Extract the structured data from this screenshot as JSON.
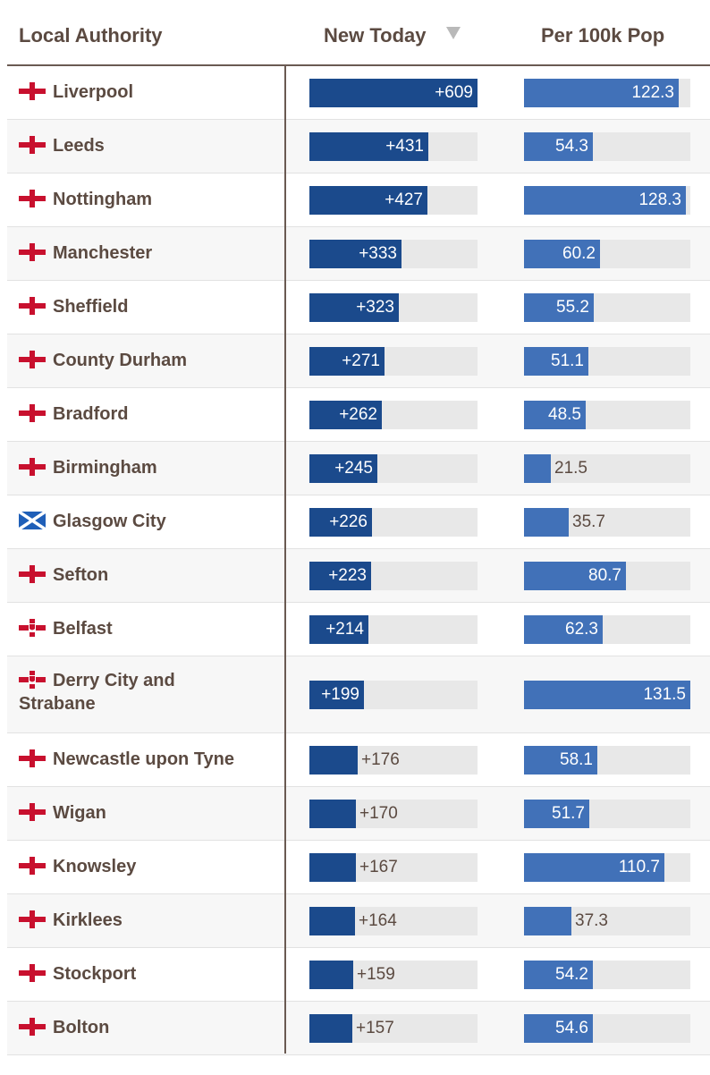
{
  "headers": {
    "authority": "Local Authority",
    "new_today": "New Today",
    "per_100k": "Per 100k Pop"
  },
  "colors": {
    "new_bar": "#1b4a8c",
    "per_bar": "#4171b8",
    "track": "#e8e8e8",
    "england_red": "#c8102e",
    "scotland_blue": "#1f5fb8"
  },
  "chart_data": {
    "type": "table",
    "sort": "new_today-descending",
    "new_today_max": 609,
    "per_100k_max": 131.5,
    "rows": [
      {
        "name": "Liverpool",
        "flag": "england-flag-icon",
        "new": 609,
        "new_label": "+609",
        "per": 122.3,
        "per_label": "122.3"
      },
      {
        "name": "Leeds",
        "flag": "england-flag-icon",
        "new": 431,
        "new_label": "+431",
        "per": 54.3,
        "per_label": "54.3"
      },
      {
        "name": "Nottingham",
        "flag": "england-flag-icon",
        "new": 427,
        "new_label": "+427",
        "per": 128.3,
        "per_label": "128.3"
      },
      {
        "name": "Manchester",
        "flag": "england-flag-icon",
        "new": 333,
        "new_label": "+333",
        "per": 60.2,
        "per_label": "60.2"
      },
      {
        "name": "Sheffield",
        "flag": "england-flag-icon",
        "new": 323,
        "new_label": "+323",
        "per": 55.2,
        "per_label": "55.2"
      },
      {
        "name": "County Durham",
        "flag": "england-flag-icon",
        "new": 271,
        "new_label": "+271",
        "per": 51.1,
        "per_label": "51.1"
      },
      {
        "name": "Bradford",
        "flag": "england-flag-icon",
        "new": 262,
        "new_label": "+262",
        "per": 48.5,
        "per_label": "48.5"
      },
      {
        "name": "Birmingham",
        "flag": "england-flag-icon",
        "new": 245,
        "new_label": "+245",
        "per": 21.5,
        "per_label": "21.5"
      },
      {
        "name": "Glasgow City",
        "flag": "scotland-flag-icon",
        "new": 226,
        "new_label": "+226",
        "per": 35.7,
        "per_label": "35.7"
      },
      {
        "name": "Sefton",
        "flag": "england-flag-icon",
        "new": 223,
        "new_label": "+223",
        "per": 80.7,
        "per_label": "80.7"
      },
      {
        "name": "Belfast",
        "flag": "northern-ireland-flag-icon",
        "new": 214,
        "new_label": "+214",
        "per": 62.3,
        "per_label": "62.3"
      },
      {
        "name": "Derry City and Strabane",
        "flag": "northern-ireland-flag-icon",
        "new": 199,
        "new_label": "+199",
        "per": 131.5,
        "per_label": "131.5"
      },
      {
        "name": "Newcastle upon Tyne",
        "flag": "england-flag-icon",
        "new": 176,
        "new_label": "+176",
        "per": 58.1,
        "per_label": "58.1"
      },
      {
        "name": "Wigan",
        "flag": "england-flag-icon",
        "new": 170,
        "new_label": "+170",
        "per": 51.7,
        "per_label": "51.7"
      },
      {
        "name": "Knowsley",
        "flag": "england-flag-icon",
        "new": 167,
        "new_label": "+167",
        "per": 110.7,
        "per_label": "110.7"
      },
      {
        "name": "Kirklees",
        "flag": "england-flag-icon",
        "new": 164,
        "new_label": "+164",
        "per": 37.3,
        "per_label": "37.3"
      },
      {
        "name": "Stockport",
        "flag": "england-flag-icon",
        "new": 159,
        "new_label": "+159",
        "per": 54.2,
        "per_label": "54.2"
      },
      {
        "name": "Bolton",
        "flag": "england-flag-icon",
        "new": 157,
        "new_label": "+157",
        "per": 54.6,
        "per_label": "54.6"
      }
    ]
  }
}
